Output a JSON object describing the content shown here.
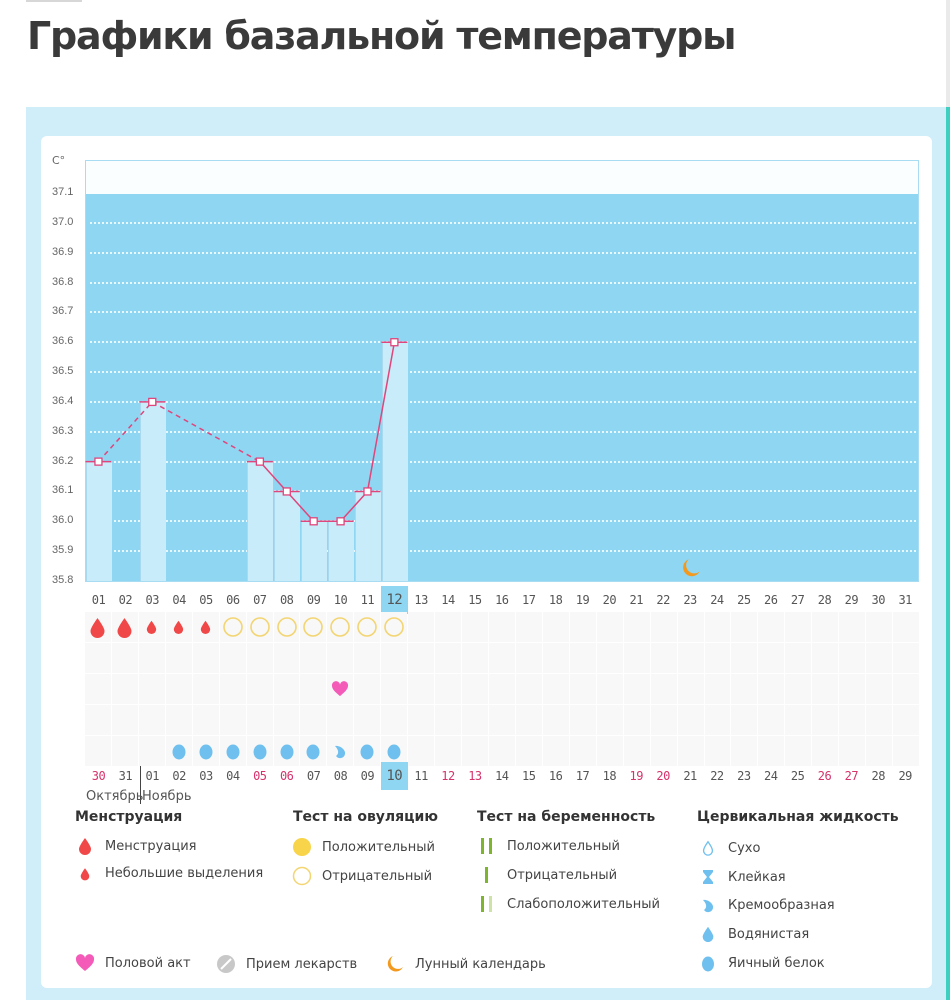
{
  "page": {
    "title": "Графики базальной температуры"
  },
  "chart_data": {
    "type": "bar",
    "title": "Графики базальной температуры",
    "ylabel": "C°",
    "xlabel": "",
    "ylim": [
      35.8,
      37.1
    ],
    "yticks": [
      "37.1",
      "37.0",
      "36.9",
      "36.8",
      "36.7",
      "36.6",
      "36.5",
      "36.4",
      "36.3",
      "36.2",
      "36.1",
      "36.0",
      "35.9",
      "35.8"
    ],
    "cycle_days": [
      "01",
      "02",
      "03",
      "04",
      "05",
      "06",
      "07",
      "08",
      "09",
      "10",
      "11",
      "12",
      "13",
      "14",
      "15",
      "16",
      "17",
      "18",
      "19",
      "20",
      "21",
      "22",
      "23",
      "24",
      "25",
      "26",
      "27",
      "28",
      "29",
      "30",
      "31"
    ],
    "current_cycle_day": "12",
    "temperatures": [
      {
        "day": "01",
        "value": 36.2
      },
      {
        "day": "03",
        "value": 36.4
      },
      {
        "day": "07",
        "value": 36.2
      },
      {
        "day": "08",
        "value": 36.1
      },
      {
        "day": "09",
        "value": 36.0
      },
      {
        "day": "10",
        "value": 36.0
      },
      {
        "day": "11",
        "value": 36.1
      },
      {
        "day": "12",
        "value": 36.6
      }
    ],
    "line_color": "#e0457b",
    "fill_color": "#8fd6f2",
    "bar_color": "#c9ecfb",
    "calendar_dates": [
      "30",
      "31",
      "01",
      "02",
      "03",
      "04",
      "05",
      "06",
      "07",
      "08",
      "09",
      "10",
      "11",
      "12",
      "13",
      "14",
      "15",
      "16",
      "17",
      "18",
      "19",
      "20",
      "21",
      "22",
      "23",
      "24",
      "25",
      "26",
      "27",
      "28",
      "29"
    ],
    "weekend_dates": [
      "30",
      "05",
      "06",
      "12",
      "13",
      "19",
      "20",
      "26",
      "27"
    ],
    "current_date": "10",
    "months": [
      "Октябрь",
      "Ноябрь"
    ],
    "rows": {
      "menstruation": [
        "large",
        "large",
        "small",
        "small",
        "small"
      ],
      "ovulation_test": {
        "start_day": "06",
        "end_day": "12",
        "result": "negative"
      },
      "intercourse_day": "10",
      "cervical_fluid": {
        "04": "egg-white",
        "05": "egg-white",
        "06": "egg-white",
        "07": "egg-white",
        "08": "egg-white",
        "09": "egg-white",
        "10": "creamy",
        "11": "egg-white",
        "12": "egg-white"
      },
      "moon_day": "23"
    }
  },
  "legend": {
    "menstruation": {
      "heading": "Менструация",
      "items": [
        "Менструация",
        "Небольшие выделения"
      ]
    },
    "ovulation": {
      "heading": "Тест на овуляцию",
      "items": [
        "Положительный",
        "Отрицательный"
      ]
    },
    "pregnancy": {
      "heading": "Тест на беременность",
      "items": [
        "Положительный",
        "Отрицательный",
        "Слабоположительный"
      ]
    },
    "cervical": {
      "heading": "Цервикальная жидкость",
      "items": [
        "Сухо",
        "Клейкая",
        "Кремообразная",
        "Водянистая",
        "Яичный белок"
      ]
    },
    "other": [
      "Половой акт",
      "Прием лекарств",
      "Лунный календарь"
    ]
  },
  "colors": {
    "menstruation": "#f04848",
    "ovulation_positive": "#f8d44a",
    "ovulation_negative": "#f3d572",
    "pregnancy": "#7fb52e",
    "pregnancy_light": "#cfe3a8",
    "intercourse": "#f45bb9",
    "medicine": "#c8c8c8",
    "moon": "#f39a1e",
    "cervical": "#6fc0ee"
  }
}
